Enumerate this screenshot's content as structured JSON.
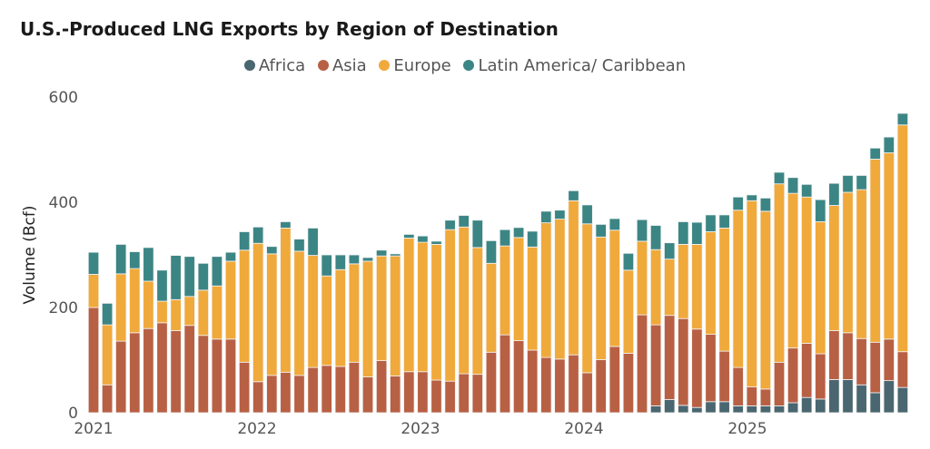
{
  "chart_data": {
    "type": "bar",
    "stacked": true,
    "title": "U.S.-Produced LNG Exports by Region of Destination",
    "xlabel": "",
    "ylabel": "Volume (Bcf)",
    "ylim": [
      0,
      600
    ],
    "yticks": [
      "0",
      "200",
      "400",
      "600"
    ],
    "xticks": [
      "2021",
      "2022",
      "2023",
      "2024",
      "2025"
    ],
    "legend_position": "top",
    "grid": false,
    "categories": [
      "2021-01",
      "2021-02",
      "2021-03",
      "2021-04",
      "2021-05",
      "2021-06",
      "2021-07",
      "2021-08",
      "2021-09",
      "2021-10",
      "2021-11",
      "2021-12",
      "2022-01",
      "2022-02",
      "2022-03",
      "2022-04",
      "2022-05",
      "2022-06",
      "2022-07",
      "2022-08",
      "2022-09",
      "2022-10",
      "2022-11",
      "2022-12",
      "2023-01",
      "2023-02",
      "2023-03",
      "2023-04",
      "2023-05",
      "2023-06",
      "2023-07",
      "2023-08",
      "2023-09",
      "2023-10",
      "2023-11",
      "2023-12",
      "2024-01",
      "2024-02",
      "2024-03",
      "2024-04",
      "2024-05",
      "2024-06",
      "2024-07",
      "2024-08",
      "2024-09",
      "2024-10",
      "2024-11",
      "2024-12",
      "2025-01",
      "2025-02",
      "2025-03",
      "2025-04",
      "2025-05",
      "2025-06",
      "2025-07",
      "2025-08",
      "2025-09",
      "2025-10",
      "2025-11",
      "2025-12"
    ],
    "series": [
      {
        "name": "Africa",
        "color": "#4a6670",
        "values": [
          0,
          0,
          0,
          0,
          0,
          0,
          0,
          0,
          0,
          0,
          0,
          0,
          0,
          0,
          0,
          0,
          0,
          0,
          0,
          0,
          0,
          0,
          0,
          0,
          0,
          0,
          0,
          0,
          0,
          0,
          0,
          0,
          0,
          0,
          0,
          0,
          0,
          0,
          0,
          0,
          0,
          13,
          25,
          14,
          10,
          21,
          21,
          13,
          13,
          13,
          13,
          19,
          29,
          26,
          63,
          63,
          53,
          38,
          61,
          48
        ]
      },
      {
        "name": "Asia",
        "color": "#b86044",
        "values": [
          200,
          53,
          136,
          152,
          160,
          171,
          156,
          166,
          147,
          140,
          140,
          96,
          59,
          71,
          77,
          71,
          86,
          90,
          88,
          96,
          68,
          99,
          70,
          78,
          78,
          62,
          60,
          74,
          73,
          115,
          148,
          137,
          119,
          105,
          102,
          110,
          76,
          101,
          126,
          113,
          186,
          154,
          160,
          165,
          149,
          128,
          96,
          73,
          36,
          32,
          83,
          104,
          103,
          86,
          93,
          89,
          88,
          96,
          79,
          68
        ]
      },
      {
        "name": "Europe",
        "color": "#f0a93b",
        "values": [
          63,
          114,
          128,
          122,
          90,
          41,
          59,
          55,
          86,
          101,
          148,
          213,
          263,
          231,
          274,
          236,
          213,
          170,
          184,
          187,
          220,
          199,
          228,
          254,
          246,
          258,
          288,
          279,
          241,
          169,
          169,
          196,
          196,
          256,
          266,
          293,
          283,
          233,
          221,
          158,
          140,
          143,
          107,
          141,
          161,
          195,
          234,
          299,
          354,
          338,
          339,
          294,
          278,
          251,
          238,
          267,
          283,
          348,
          354,
          431
        ]
      },
      {
        "name": "Latin America/ Caribbean",
        "color": "#3c8585",
        "values": [
          42,
          41,
          56,
          32,
          64,
          59,
          84,
          76,
          51,
          56,
          17,
          35,
          31,
          14,
          12,
          23,
          52,
          40,
          28,
          17,
          7,
          11,
          4,
          7,
          12,
          6,
          18,
          22,
          52,
          43,
          31,
          19,
          30,
          22,
          17,
          19,
          36,
          24,
          22,
          32,
          41,
          46,
          31,
          43,
          42,
          32,
          25,
          25,
          11,
          25,
          22,
          30,
          24,
          42,
          42,
          32,
          27,
          21,
          30,
          22
        ]
      }
    ]
  }
}
